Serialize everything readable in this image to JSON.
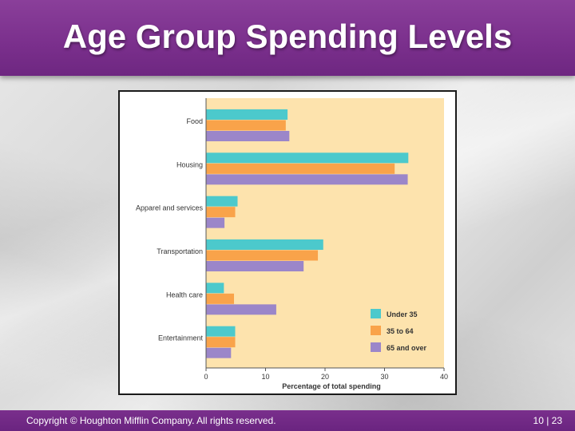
{
  "slide": {
    "title": "Age Group Spending Levels",
    "copyright": "Copyright © Houghton Mifflin Company.  All rights reserved.",
    "page_number": "10 | 23"
  },
  "colors": {
    "plot_background": "#fde3ad",
    "under_35": "#4cc9cc",
    "35_to_64": "#f9a34a",
    "65_and_over": "#9b86c9"
  },
  "chart_data": {
    "type": "bar",
    "orientation": "horizontal",
    "title": "",
    "xlabel": "Percentage of total spending",
    "ylabel": "",
    "xlim": [
      0,
      40
    ],
    "xticks": [
      "0",
      "10",
      "20",
      "30",
      "40"
    ],
    "xtick_values": [
      0,
      10,
      20,
      30,
      40
    ],
    "grid": false,
    "legend_position": "bottom-right",
    "categories": [
      "Food",
      "Housing",
      "Apparel and services",
      "Transportation",
      "Health care",
      "Entertainment"
    ],
    "series": [
      {
        "name": "Under 35",
        "color": "#4cc9cc",
        "values": [
          13.7,
          34.0,
          5.3,
          19.7,
          3.0,
          4.9
        ]
      },
      {
        "name": "35 to 64",
        "color": "#f9a34a",
        "values": [
          13.4,
          31.7,
          4.9,
          18.8,
          4.7,
          4.9
        ]
      },
      {
        "name": "65 and over",
        "color": "#9b86c9",
        "values": [
          14.0,
          33.9,
          3.1,
          16.4,
          11.8,
          4.2
        ]
      }
    ]
  }
}
